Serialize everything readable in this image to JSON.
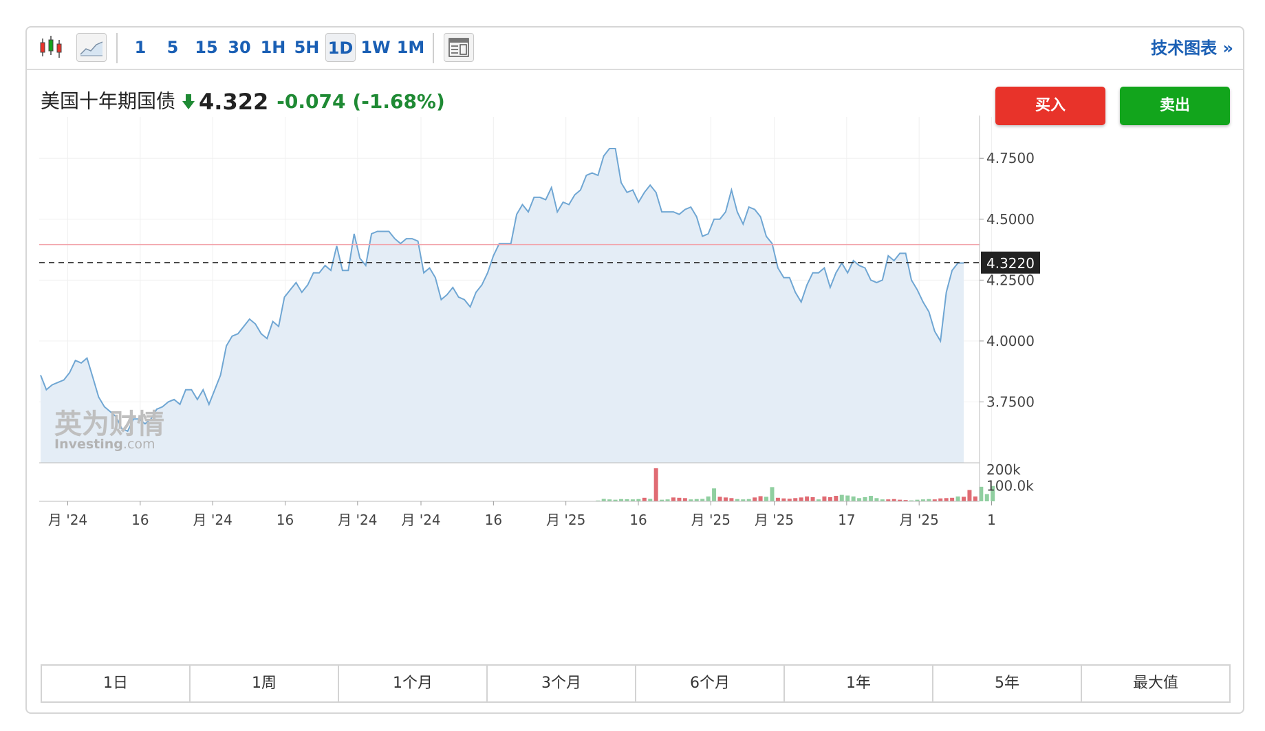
{
  "toolbar": {
    "timeframes": [
      "1",
      "5",
      "15",
      "30",
      "1H",
      "5H",
      "1D",
      "1W",
      "1M"
    ],
    "active_timeframe": "1D",
    "tech_chart_link": "技术图表 »"
  },
  "instrument": {
    "name": "美国十年期国债",
    "price": "4.322",
    "change": "-0.074",
    "change_pct": "(-1.68%)"
  },
  "buttons": {
    "buy": "买入",
    "sell": "卖出"
  },
  "watermark": {
    "cn": "英为财情",
    "en": "Investing",
    "domain": ".com"
  },
  "ranges": [
    "1日",
    "1周",
    "1个月",
    "3个月",
    "6个月",
    "1年",
    "5年",
    "最大值"
  ],
  "colors": {
    "line": "#6fa6d3",
    "fill": "#e4edf6",
    "up": "#90cfa0",
    "down": "#e06b73",
    "ref_line": "#f2a3aa"
  },
  "chart_data": {
    "type": "area",
    "ylim": [
      3.5,
      4.92
    ],
    "yticks": [
      "4.7500",
      "4.5000",
      "4.2500",
      "4.0000",
      "3.7500"
    ],
    "ytick_values": [
      4.75,
      4.5,
      4.25,
      4.0,
      3.75
    ],
    "current_value": 4.322,
    "current_label": "4.3220",
    "reference_value": 4.396,
    "xtick_labels": [
      "月 '24",
      "16",
      "月 '24",
      "16",
      "月 '24",
      "月 '24",
      "16",
      "月 '25",
      "16",
      "月 '25",
      "月 '25",
      "17",
      "月 '25",
      "1"
    ],
    "xtick_positions": [
      3,
      11,
      19,
      27,
      35,
      42,
      50,
      58,
      66,
      74,
      81,
      89,
      97,
      105
    ],
    "values": [
      3.86,
      3.8,
      3.82,
      3.83,
      3.84,
      3.87,
      3.92,
      3.91,
      3.93,
      3.85,
      3.77,
      3.73,
      3.71,
      3.69,
      3.64,
      3.63,
      3.68,
      3.68,
      3.66,
      3.68,
      3.72,
      3.73,
      3.75,
      3.76,
      3.74,
      3.8,
      3.8,
      3.76,
      3.8,
      3.74,
      3.8,
      3.86,
      3.98,
      4.02,
      4.03,
      4.06,
      4.09,
      4.07,
      4.03,
      4.01,
      4.08,
      4.06,
      4.18,
      4.21,
      4.24,
      4.2,
      4.23,
      4.28,
      4.28,
      4.31,
      4.29,
      4.39,
      4.29,
      4.29,
      4.44,
      4.34,
      4.31,
      4.44,
      4.45,
      4.45,
      4.45,
      4.42,
      4.4,
      4.42,
      4.42,
      4.41,
      4.28,
      4.3,
      4.26,
      4.17,
      4.19,
      4.22,
      4.18,
      4.17,
      4.14,
      4.2,
      4.23,
      4.28,
      4.35,
      4.4,
      4.4,
      4.4,
      4.52,
      4.56,
      4.53,
      4.59,
      4.59,
      4.58,
      4.63,
      4.53,
      4.57,
      4.56,
      4.6,
      4.62,
      4.68,
      4.69,
      4.68,
      4.76,
      4.79,
      4.79,
      4.65,
      4.61,
      4.62,
      4.57,
      4.61,
      4.64,
      4.61,
      4.53,
      4.53,
      4.53,
      4.52,
      4.54,
      4.55,
      4.51,
      4.43,
      4.44,
      4.5,
      4.5,
      4.53,
      4.62,
      4.53,
      4.48,
      4.55,
      4.54,
      4.51,
      4.43,
      4.4,
      4.3,
      4.26,
      4.26,
      4.2,
      4.16,
      4.23,
      4.28,
      4.28,
      4.3,
      4.22,
      4.28,
      4.32,
      4.28,
      4.33,
      4.31,
      4.3,
      4.25,
      4.24,
      4.25,
      4.35,
      4.33,
      4.36,
      4.36,
      4.25,
      4.21,
      4.16,
      4.12,
      4.04,
      4.0,
      4.2,
      4.29,
      4.32,
      4.32
    ],
    "volume_ticks": [
      "200k",
      "100.0k"
    ],
    "volume_tick_values": [
      200000,
      100000
    ],
    "volume_ymax": 230000,
    "volumes": [
      {
        "i": 96,
        "v": 5000,
        "up": true
      },
      {
        "i": 97,
        "v": 15000,
        "up": true
      },
      {
        "i": 98,
        "v": 12000,
        "up": true
      },
      {
        "i": 99,
        "v": 10000,
        "up": true
      },
      {
        "i": 100,
        "v": 14000,
        "up": true
      },
      {
        "i": 101,
        "v": 13000,
        "up": true
      },
      {
        "i": 102,
        "v": 12000,
        "up": true
      },
      {
        "i": 103,
        "v": 14000,
        "up": true
      },
      {
        "i": 104,
        "v": 22000,
        "up": false
      },
      {
        "i": 105,
        "v": 15000,
        "up": true
      },
      {
        "i": 106,
        "v": 205000,
        "up": false
      },
      {
        "i": 107,
        "v": 10000,
        "up": true
      },
      {
        "i": 108,
        "v": 12000,
        "up": true
      },
      {
        "i": 109,
        "v": 24000,
        "up": false
      },
      {
        "i": 110,
        "v": 22000,
        "up": false
      },
      {
        "i": 111,
        "v": 20000,
        "up": false
      },
      {
        "i": 112,
        "v": 12000,
        "up": true
      },
      {
        "i": 113,
        "v": 14000,
        "up": true
      },
      {
        "i": 114,
        "v": 15000,
        "up": true
      },
      {
        "i": 115,
        "v": 30000,
        "up": true
      },
      {
        "i": 116,
        "v": 80000,
        "up": true
      },
      {
        "i": 117,
        "v": 28000,
        "up": false
      },
      {
        "i": 118,
        "v": 24000,
        "up": false
      },
      {
        "i": 119,
        "v": 20000,
        "up": false
      },
      {
        "i": 120,
        "v": 14000,
        "up": true
      },
      {
        "i": 121,
        "v": 12000,
        "up": true
      },
      {
        "i": 122,
        "v": 14000,
        "up": true
      },
      {
        "i": 123,
        "v": 24000,
        "up": false
      },
      {
        "i": 124,
        "v": 32000,
        "up": false
      },
      {
        "i": 125,
        "v": 28000,
        "up": true
      },
      {
        "i": 126,
        "v": 88000,
        "up": true
      },
      {
        "i": 127,
        "v": 22000,
        "up": false
      },
      {
        "i": 128,
        "v": 18000,
        "up": false
      },
      {
        "i": 129,
        "v": 16000,
        "up": false
      },
      {
        "i": 130,
        "v": 20000,
        "up": false
      },
      {
        "i": 131,
        "v": 24000,
        "up": false
      },
      {
        "i": 132,
        "v": 30000,
        "up": false
      },
      {
        "i": 133,
        "v": 26000,
        "up": false
      },
      {
        "i": 134,
        "v": 12000,
        "up": true
      },
      {
        "i": 135,
        "v": 30000,
        "up": false
      },
      {
        "i": 136,
        "v": 26000,
        "up": false
      },
      {
        "i": 137,
        "v": 34000,
        "up": false
      },
      {
        "i": 138,
        "v": 40000,
        "up": true
      },
      {
        "i": 139,
        "v": 36000,
        "up": true
      },
      {
        "i": 140,
        "v": 30000,
        "up": true
      },
      {
        "i": 141,
        "v": 20000,
        "up": true
      },
      {
        "i": 142,
        "v": 26000,
        "up": true
      },
      {
        "i": 143,
        "v": 34000,
        "up": true
      },
      {
        "i": 144,
        "v": 20000,
        "up": true
      },
      {
        "i": 145,
        "v": 12000,
        "up": true
      },
      {
        "i": 146,
        "v": 12000,
        "up": false
      },
      {
        "i": 147,
        "v": 14000,
        "up": false
      },
      {
        "i": 148,
        "v": 10000,
        "up": false
      },
      {
        "i": 149,
        "v": 8000,
        "up": false
      },
      {
        "i": 150,
        "v": 6000,
        "up": true
      },
      {
        "i": 151,
        "v": 10000,
        "up": true
      },
      {
        "i": 152,
        "v": 12000,
        "up": true
      },
      {
        "i": 153,
        "v": 14000,
        "up": true
      },
      {
        "i": 154,
        "v": 12000,
        "up": false
      },
      {
        "i": 155,
        "v": 18000,
        "up": false
      },
      {
        "i": 156,
        "v": 20000,
        "up": false
      },
      {
        "i": 157,
        "v": 22000,
        "up": false
      },
      {
        "i": 158,
        "v": 30000,
        "up": true
      },
      {
        "i": 159,
        "v": 28000,
        "up": false
      },
      {
        "i": 160,
        "v": 70000,
        "up": false
      },
      {
        "i": 161,
        "v": 30000,
        "up": false
      },
      {
        "i": 162,
        "v": 90000,
        "up": true
      },
      {
        "i": 163,
        "v": 45000,
        "up": true
      },
      {
        "i": 164,
        "v": 95000,
        "up": true
      }
    ]
  }
}
